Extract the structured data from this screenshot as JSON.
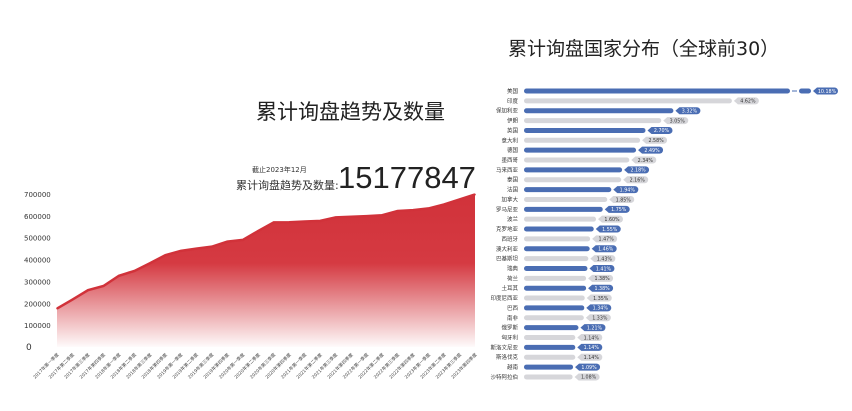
{
  "left": {
    "title": "累计询盘趋势及数量",
    "as_of": "截止2023年12月",
    "total_label": "累计询盘趋势及数量:",
    "total_value": "15177847"
  },
  "right": {
    "title": "累计询盘国家分布（全球前30）"
  },
  "chart_data": [
    {
      "type": "area",
      "color": "#d1323a",
      "ylim": [
        0,
        700000
      ],
      "yticks": [
        "0",
        "100000",
        "200000",
        "300000",
        "400000",
        "500000",
        "600000",
        "700000"
      ],
      "categories": [
        "2017年第一季度",
        "2017年第二季度",
        "2017年第三季度",
        "2017年第四季度",
        "2018年第一季度",
        "2018年第二季度",
        "2018年第三季度",
        "2018年第四季度",
        "2019年第一季度",
        "2019年第二季度",
        "2019年第三季度",
        "2019年第四季度",
        "2020年第一季度",
        "2020年第二季度",
        "2020年第三季度",
        "2020年第四季度",
        "2021年第一季度",
        "2021年第二季度",
        "2021年第三季度",
        "2021年第四季度",
        "2022年第一季度",
        "2022年第二季度",
        "2022年第三季度",
        "2022年第四季度",
        "2023年第一季度",
        "2023年第二季度",
        "2023年第三季度",
        "2023年第四季度"
      ],
      "values": [
        176000,
        217000,
        260000,
        279000,
        326000,
        348000,
        383000,
        420000,
        440000,
        450000,
        459000,
        482000,
        490000,
        531000,
        570000,
        571000,
        574000,
        577000,
        593000,
        596000,
        599000,
        603000,
        622000,
        626000,
        634000,
        652000,
        675000,
        698000
      ]
    },
    {
      "type": "bar",
      "orientation": "horizontal",
      "broken_axis": true,
      "colors": {
        "odd": "#4a6db3",
        "even": "#d6d6da"
      },
      "categories": [
        "美国",
        "印度",
        "保加利亚",
        "伊朗",
        "英国",
        "意大利",
        "德国",
        "墨西哥",
        "马来西亚",
        "泰国",
        "法国",
        "加拿大",
        "罗马尼亚",
        "波兰",
        "克罗地亚",
        "西班牙",
        "澳大利亚",
        "巴基斯坦",
        "瑞典",
        "荷兰",
        "土耳其",
        "印度尼西亚",
        "巴西",
        "南非",
        "俄罗斯",
        "匈牙利",
        "斯洛文尼亚",
        "斯洛伐克",
        "越南",
        "沙特阿拉伯"
      ],
      "values": [
        10.18,
        4.62,
        3.32,
        3.05,
        2.7,
        2.58,
        2.49,
        2.34,
        2.18,
        2.16,
        1.94,
        1.85,
        1.75,
        1.6,
        1.55,
        1.47,
        1.46,
        1.43,
        1.41,
        1.38,
        1.38,
        1.35,
        1.34,
        1.33,
        1.21,
        1.14,
        1.14,
        1.14,
        1.09,
        1.08
      ],
      "labels": [
        "10.18%",
        "4.62%",
        "3.32%",
        "3.05%",
        "2.70%",
        "2.58%",
        "2.49%",
        "2.34%",
        "2.18%",
        "2.16%",
        "1.94%",
        "1.85%",
        "1.75%",
        "1.60%",
        "1.55%",
        "1.47%",
        "1.46%",
        "1.43%",
        "1.41%",
        "1.38%",
        "1.38%",
        "1.35%",
        "1.34%",
        "1.33%",
        "1.21%",
        "1.14%",
        "1.14%",
        "1.14%",
        "1.09%",
        "1.08%"
      ]
    }
  ]
}
